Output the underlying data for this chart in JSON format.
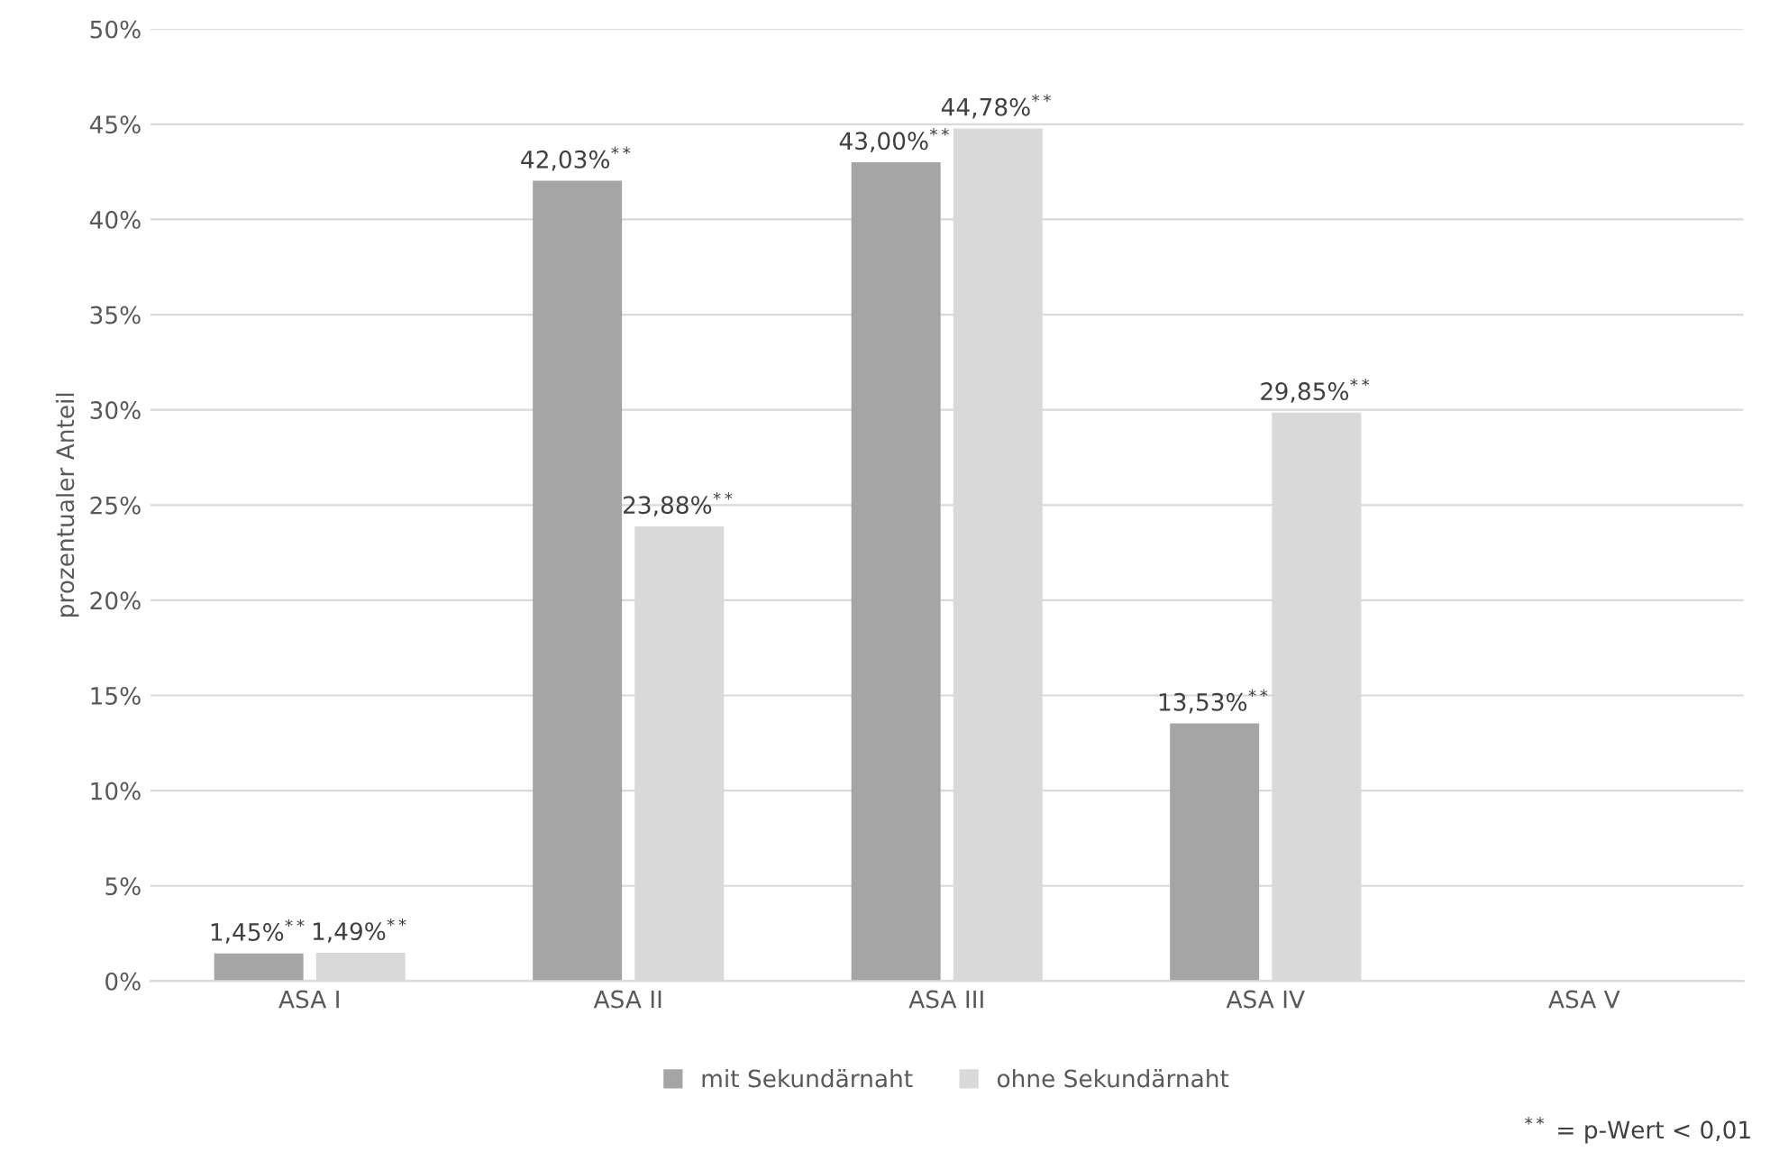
{
  "chart_data": {
    "type": "bar",
    "ylabel": "prozentualer Anteil",
    "categories": [
      "ASA I",
      "ASA II",
      "ASA III",
      "ASA IV",
      "ASA V"
    ],
    "series": [
      {
        "name": "mit Sekundärnaht",
        "color": "#a5a5a5",
        "values": [
          1.45,
          42.03,
          43.0,
          13.53,
          null
        ],
        "value_labels": [
          "1,45%$^{**}$",
          "42,03%$^{**}$",
          "43,00%$^{**}$",
          "13,53%$^{**}$",
          null
        ]
      },
      {
        "name": "ohne Sekundärnaht",
        "color": "#d9d9d9",
        "values": [
          1.49,
          23.88,
          44.78,
          29.85,
          null
        ],
        "value_labels": [
          "1,49%$^{**}$",
          "23,88%$^{**}$",
          "44,78%$^{**}$",
          "29,85%$^{**}$",
          null
        ]
      }
    ],
    "ylim": [
      0,
      50
    ],
    "yticks": [
      {
        "value": 0,
        "label": "0%"
      },
      {
        "value": 5,
        "label": "5%"
      },
      {
        "value": 10,
        "label": "10%"
      },
      {
        "value": 15,
        "label": "15%"
      },
      {
        "value": 20,
        "label": "20%"
      },
      {
        "value": 25,
        "label": "25%"
      },
      {
        "value": 30,
        "label": "30%"
      },
      {
        "value": 35,
        "label": "35%"
      },
      {
        "value": 40,
        "label": "40%"
      },
      {
        "value": 45,
        "label": "45%"
      },
      {
        "value": 50,
        "label": "50%"
      }
    ],
    "grid": "y",
    "legend": "bottom",
    "annotations": [
      "$^{**}$ = p-Wert < 0,01"
    ]
  }
}
